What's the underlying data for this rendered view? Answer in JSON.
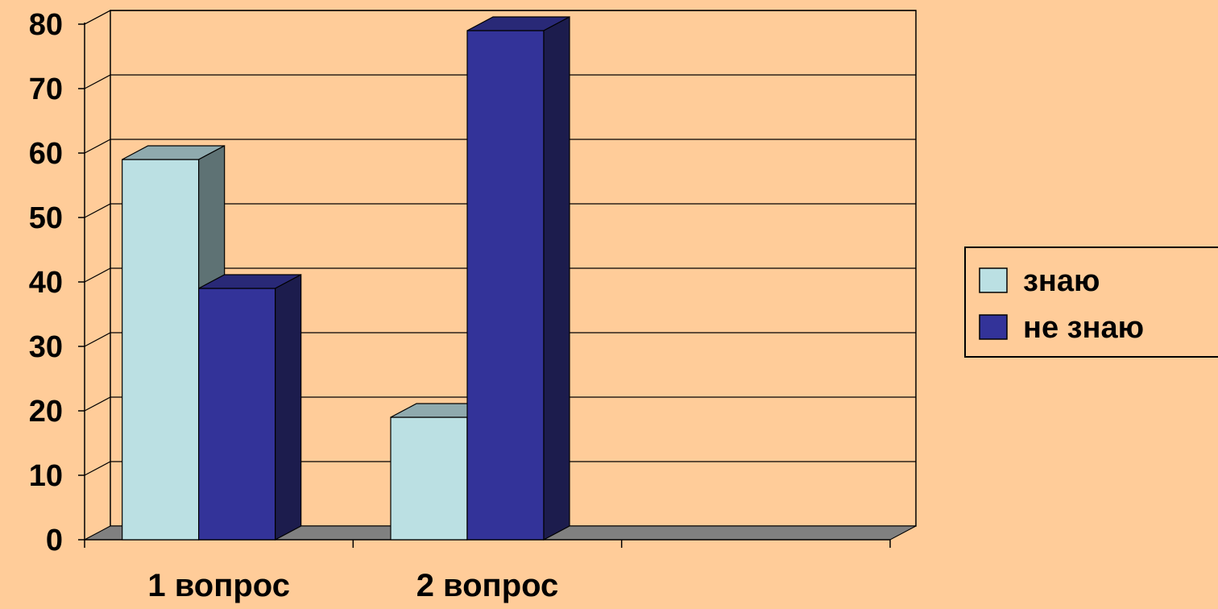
{
  "chart_data": {
    "type": "bar",
    "categories": [
      "1 вопрос",
      "2 вопрос",
      ""
    ],
    "series": [
      {
        "name": "знаю",
        "values": [
          59,
          19,
          null
        ]
      },
      {
        "name": "не знаю",
        "values": [
          39,
          79,
          null
        ]
      }
    ],
    "title": "",
    "xlabel": "",
    "ylabel": "",
    "ylim": [
      0,
      80
    ],
    "yticks": [
      0,
      10,
      20,
      30,
      40,
      50,
      60,
      70,
      80
    ],
    "grid": true,
    "style": "3d-clustered-column",
    "legend": {
      "position": "right",
      "entries": [
        "знаю",
        "не знаю"
      ]
    },
    "colors": {
      "background": "#FFCC99",
      "series": [
        "#BBE0E3",
        "#333399"
      ],
      "series_top": [
        "#8FAAAE",
        "#292977"
      ],
      "series_side": [
        "#5E7274",
        "#1C1C4D"
      ],
      "floor": "#808080",
      "grid": "#000000"
    }
  }
}
